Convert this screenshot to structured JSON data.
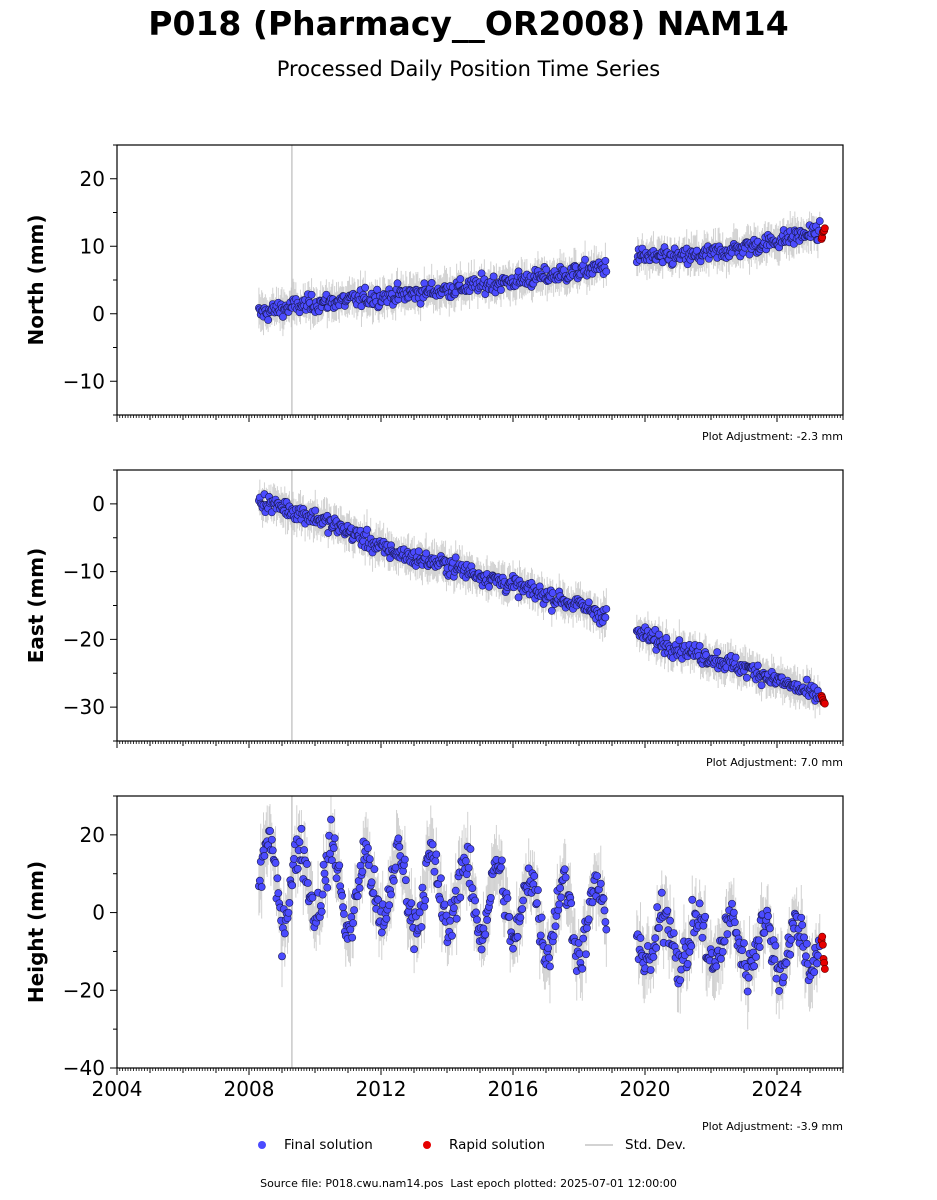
{
  "title": "P018 (Pharmacy__OR2008) NAM14",
  "subtitle": "Processed Daily Position Time Series",
  "colors": {
    "final": "#4b4bff",
    "final_edge": "#1a1a4d",
    "rapid": "#e60000",
    "stddev": "#b4b4b4",
    "gap_line": "#c8c8c8"
  },
  "chart_data": [
    {
      "type": "scatter",
      "ylabel": "North (mm)",
      "ylim": [
        -15,
        25
      ],
      "yticks": [
        -10,
        0,
        10,
        20
      ],
      "xlim": [
        2004,
        2026
      ],
      "adjustment": "Plot Adjustment: -2.3 mm",
      "vertical_line_x": 2009.3,
      "series": [
        {
          "name": "Final solution",
          "x": [
            2008.3,
            2009.0,
            2010.0,
            2011.0,
            2012.0,
            2013.0,
            2014.0,
            2015.0,
            2016.0,
            2017.0,
            2018.0,
            2018.8,
            2019.8,
            2020.5,
            2021.5,
            2022.5,
            2023.5,
            2024.5,
            2025.3
          ],
          "y": [
            0.0,
            0.8,
            1.5,
            2.0,
            2.5,
            3.0,
            3.6,
            4.2,
            4.8,
            5.5,
            6.2,
            7.0,
            8.5,
            8.3,
            8.5,
            9.3,
            10.3,
            11.4,
            12.2
          ]
        },
        {
          "name": "Rapid solution",
          "x": [
            2025.35,
            2025.4,
            2025.45
          ],
          "y": [
            11.0,
            12.0,
            12.5
          ]
        }
      ]
    },
    {
      "type": "scatter",
      "ylabel": "East (mm)",
      "ylim": [
        -35,
        5
      ],
      "yticks": [
        -30,
        -20,
        -10,
        0
      ],
      "xlim": [
        2004,
        2026
      ],
      "adjustment": "Plot Adjustment: 7.0 mm",
      "vertical_line_x": 2009.3,
      "series": [
        {
          "name": "Final solution",
          "x": [
            2008.3,
            2009.0,
            2010.0,
            2011.0,
            2012.0,
            2013.0,
            2014.0,
            2015.0,
            2016.0,
            2017.0,
            2018.0,
            2018.8,
            2019.8,
            2020.5,
            2021.5,
            2022.5,
            2023.5,
            2024.5,
            2025.3
          ],
          "y": [
            0.5,
            -0.5,
            -2.0,
            -4.0,
            -6.5,
            -8.0,
            -9.0,
            -10.5,
            -12.0,
            -13.5,
            -15.0,
            -16.5,
            -19.0,
            -20.5,
            -22.0,
            -23.5,
            -25.0,
            -27.0,
            -28.5
          ]
        },
        {
          "name": "Rapid solution",
          "x": [
            2025.35,
            2025.4,
            2025.45
          ],
          "y": [
            -28.5,
            -29.0,
            -29.5
          ]
        }
      ]
    },
    {
      "type": "scatter",
      "ylabel": "Height (mm)",
      "ylim": [
        -40,
        30
      ],
      "yticks": [
        -40,
        -20,
        0,
        20
      ],
      "xlim": [
        2004,
        2026
      ],
      "xticks": [
        2004,
        2008,
        2012,
        2016,
        2020,
        2024
      ],
      "adjustment": "Plot Adjustment: -3.9 mm",
      "vertical_line_x": 2009.3,
      "series": [
        {
          "name": "Final solution",
          "x": [
            2008.3,
            2008.6,
            2009.0,
            2009.5,
            2010.0,
            2010.5,
            2011.0,
            2011.5,
            2012.0,
            2012.5,
            2013.0,
            2013.5,
            2014.0,
            2014.5,
            2015.0,
            2015.5,
            2016.0,
            2016.5,
            2017.0,
            2017.5,
            2018.0,
            2018.5,
            2018.8,
            2019.8,
            2020.3,
            2020.8,
            2021.3,
            2021.8,
            2022.3,
            2022.8,
            2023.3,
            2023.8,
            2024.3,
            2024.8,
            2025.3
          ],
          "y": [
            5.0,
            15.0,
            3.0,
            12.0,
            5.0,
            12.0,
            0.0,
            10.0,
            2.0,
            10.0,
            2.0,
            9.0,
            1.0,
            8.0,
            0.0,
            7.0,
            -2.0,
            5.0,
            -5.0,
            3.0,
            -6.0,
            2.0,
            -3.0,
            -6.0,
            -9.0,
            -4.0,
            -10.0,
            -5.0,
            -10.0,
            -5.0,
            -11.0,
            -6.0,
            -11.0,
            -7.0,
            -9.0
          ]
        },
        {
          "name": "Rapid solution",
          "x": [
            2025.35,
            2025.4,
            2025.45
          ],
          "y": [
            -6.0,
            -10.0,
            -14.0
          ]
        }
      ]
    }
  ],
  "legend": {
    "final": "Final solution",
    "rapid": "Rapid solution",
    "stddev": "Std. Dev."
  },
  "footer": "Source file: P018.cwu.nam14.pos  Last epoch plotted: 2025-07-01 12:00:00"
}
